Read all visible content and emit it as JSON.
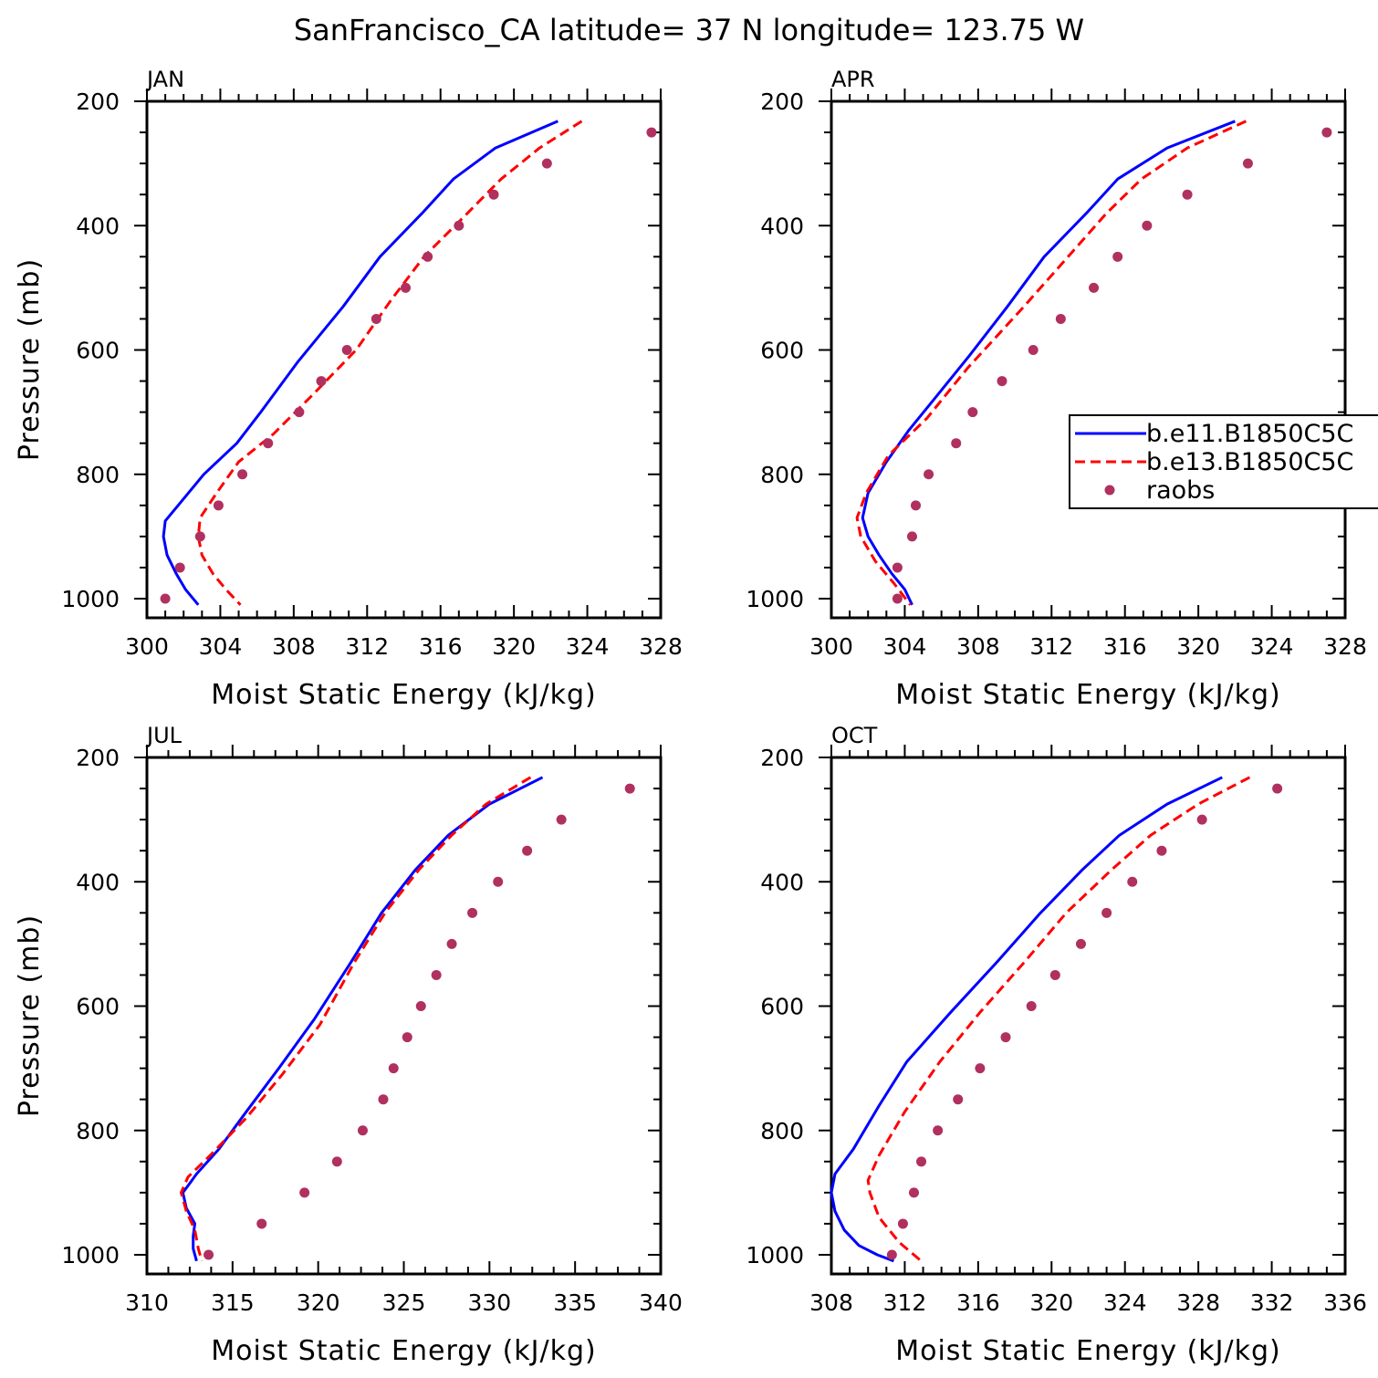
{
  "title": "SanFrancisco_CA  latitude= 37 N longitude= 123.75 W",
  "legend": {
    "entries": [
      {
        "label": "b.e11.B1850C5C",
        "color": "#0000ff",
        "style": "solid"
      },
      {
        "label": "b.e13.B1850C5C",
        "color": "#ff0000",
        "style": "dashed"
      },
      {
        "label": "raobs",
        "color": "#b03060",
        "style": "dots"
      }
    ]
  },
  "chart_data": [
    {
      "type": "line",
      "panel": "JAN",
      "xlabel": "Moist Static Energy (kJ/kg)",
      "ylabel": "Pressure (mb)",
      "xlim": [
        300,
        328
      ],
      "xticks": [
        300,
        304,
        308,
        312,
        316,
        320,
        324,
        328
      ],
      "ylim": [
        1025,
        200
      ],
      "yticks": [
        200,
        400,
        600,
        800,
        1000
      ],
      "series": [
        {
          "name": "b.e11.B1850C5C",
          "color": "#0000ff",
          "style": "solid",
          "x": [
            322.4,
            319.0,
            316.7,
            315.0,
            312.7,
            310.7,
            308.2,
            306.2,
            304.9,
            303.1,
            301.7,
            301.0,
            300.9,
            301.1,
            301.6,
            302.1,
            302.8
          ],
          "y": [
            232,
            275,
            325,
            380,
            450,
            530,
            620,
            700,
            750,
            800,
            850,
            875,
            900,
            930,
            960,
            985,
            1010
          ]
        },
        {
          "name": "b.e13.B1850C5C",
          "color": "#ff0000",
          "style": "dashed",
          "x": [
            323.7,
            321.4,
            319.3,
            317.3,
            315.1,
            313.3,
            311.4,
            309.1,
            306.9,
            305.0,
            303.8,
            302.9,
            302.8,
            303.0,
            303.6,
            304.3,
            305.1
          ],
          "y": [
            232,
            275,
            325,
            385,
            450,
            520,
            600,
            670,
            735,
            780,
            830,
            870,
            900,
            930,
            960,
            985,
            1010
          ]
        },
        {
          "name": "raobs",
          "color": "#b03060",
          "style": "dots",
          "x": [
            327.5,
            321.8,
            318.9,
            317.0,
            315.3,
            314.1,
            312.5,
            310.9,
            309.5,
            308.3,
            306.6,
            305.2,
            303.9,
            302.9,
            301.8,
            301.0
          ],
          "y": [
            250,
            300,
            350,
            400,
            450,
            500,
            550,
            600,
            650,
            700,
            750,
            800,
            850,
            900,
            950,
            1000
          ]
        }
      ]
    },
    {
      "type": "line",
      "panel": "APR",
      "xlabel": "Moist Static Energy (kJ/kg)",
      "ylabel": "",
      "xlim": [
        300,
        328
      ],
      "xticks": [
        300,
        304,
        308,
        312,
        316,
        320,
        324,
        328
      ],
      "ylim": [
        1025,
        200
      ],
      "yticks": [
        200,
        400,
        600,
        800,
        1000
      ],
      "series": [
        {
          "name": "b.e11.B1850C5C",
          "color": "#0000ff",
          "style": "solid",
          "x": [
            322.0,
            318.3,
            315.6,
            313.9,
            311.6,
            309.6,
            307.5,
            305.3,
            304.2,
            303.0,
            302.0,
            301.7,
            302.0,
            302.6,
            303.3,
            304.0,
            304.4
          ],
          "y": [
            232,
            275,
            325,
            380,
            450,
            530,
            610,
            690,
            730,
            780,
            830,
            870,
            900,
            930,
            960,
            985,
            1010
          ]
        },
        {
          "name": "b.e13.B1850C5C",
          "color": "#ff0000",
          "style": "dashed",
          "x": [
            322.6,
            319.4,
            316.9,
            315.0,
            312.9,
            310.5,
            307.4,
            305.2,
            303.1,
            301.9,
            301.4,
            301.6,
            302.4,
            303.4,
            304.3
          ],
          "y": [
            232,
            275,
            325,
            380,
            450,
            530,
            630,
            710,
            770,
            830,
            870,
            900,
            940,
            975,
            1010
          ]
        },
        {
          "name": "raobs",
          "color": "#b03060",
          "style": "dots",
          "x": [
            327.0,
            322.7,
            319.4,
            317.2,
            315.6,
            314.3,
            312.5,
            311.0,
            309.3,
            307.7,
            306.8,
            305.3,
            304.6,
            304.4,
            303.6,
            303.6
          ],
          "y": [
            250,
            300,
            350,
            400,
            450,
            500,
            550,
            600,
            650,
            700,
            750,
            800,
            850,
            900,
            950,
            1000
          ]
        }
      ]
    },
    {
      "type": "line",
      "panel": "JUL",
      "xlabel": "Moist Static Energy (kJ/kg)",
      "ylabel": "Pressure (mb)",
      "xlim": [
        310,
        340
      ],
      "xticks": [
        310,
        315,
        320,
        325,
        330,
        335,
        340
      ],
      "ylim": [
        1025,
        200
      ],
      "yticks": [
        200,
        400,
        600,
        800,
        1000
      ],
      "series": [
        {
          "name": "b.e11.B1850C5C",
          "color": "#0000ff",
          "style": "solid",
          "x": [
            333.1,
            330.0,
            327.6,
            325.7,
            323.7,
            321.9,
            319.8,
            317.7,
            315.8,
            314.2,
            312.9,
            312.5,
            312.1,
            312.3,
            312.8,
            312.7,
            312.7,
            312.9
          ],
          "y": [
            232,
            275,
            325,
            380,
            450,
            530,
            620,
            700,
            770,
            830,
            870,
            885,
            900,
            925,
            950,
            970,
            990,
            1010
          ]
        },
        {
          "name": "b.e13.B1850C5C",
          "color": "#ff0000",
          "style": "dashed",
          "x": [
            332.4,
            329.8,
            327.8,
            325.9,
            323.9,
            322.1,
            320.1,
            317.9,
            315.8,
            313.7,
            312.4,
            312.0,
            312.3,
            312.8,
            313.0,
            313.2
          ],
          "y": [
            232,
            275,
            325,
            380,
            450,
            530,
            630,
            710,
            780,
            840,
            875,
            900,
            930,
            960,
            990,
            1010
          ]
        },
        {
          "name": "raobs",
          "color": "#b03060",
          "style": "dots",
          "x": [
            338.2,
            334.2,
            332.2,
            330.5,
            329.0,
            327.8,
            326.9,
            326.0,
            325.2,
            324.4,
            323.8,
            322.6,
            321.1,
            319.2,
            316.7,
            313.6
          ],
          "y": [
            250,
            300,
            350,
            400,
            450,
            500,
            550,
            600,
            650,
            700,
            750,
            800,
            850,
            900,
            950,
            1000
          ]
        }
      ]
    },
    {
      "type": "line",
      "panel": "OCT",
      "xlabel": "Moist Static Energy (kJ/kg)",
      "ylabel": "",
      "xlim": [
        308,
        336
      ],
      "xticks": [
        308,
        312,
        316,
        320,
        324,
        328,
        332,
        336
      ],
      "ylim": [
        1025,
        200
      ],
      "yticks": [
        200,
        400,
        600,
        800,
        1000
      ],
      "series": [
        {
          "name": "b.e11.B1850C5C",
          "color": "#0000ff",
          "style": "solid",
          "x": [
            329.3,
            326.3,
            323.7,
            321.7,
            319.4,
            317.0,
            314.5,
            312.1,
            310.6,
            309.2,
            308.2,
            308.0,
            308.2,
            308.7,
            309.5,
            310.5,
            311.4
          ],
          "y": [
            232,
            275,
            325,
            380,
            450,
            530,
            610,
            690,
            760,
            830,
            870,
            900,
            930,
            960,
            985,
            1000,
            1010
          ]
        },
        {
          "name": "b.e13.B1850C5C",
          "color": "#ff0000",
          "style": "dashed",
          "x": [
            330.8,
            328.0,
            325.4,
            323.3,
            320.8,
            318.5,
            316.1,
            313.9,
            312.0,
            310.6,
            310.0,
            310.1,
            310.6,
            311.7,
            312.9
          ],
          "y": [
            232,
            275,
            325,
            380,
            450,
            530,
            610,
            690,
            770,
            840,
            880,
            900,
            940,
            980,
            1010
          ]
        },
        {
          "name": "raobs",
          "color": "#b03060",
          "style": "dots",
          "x": [
            332.3,
            328.2,
            326.0,
            324.4,
            323.0,
            321.6,
            320.2,
            318.9,
            317.5,
            316.1,
            314.9,
            313.8,
            312.9,
            312.5,
            311.9,
            311.3
          ],
          "y": [
            250,
            300,
            350,
            400,
            450,
            500,
            550,
            600,
            650,
            700,
            750,
            800,
            850,
            900,
            950,
            1000
          ]
        }
      ]
    }
  ]
}
